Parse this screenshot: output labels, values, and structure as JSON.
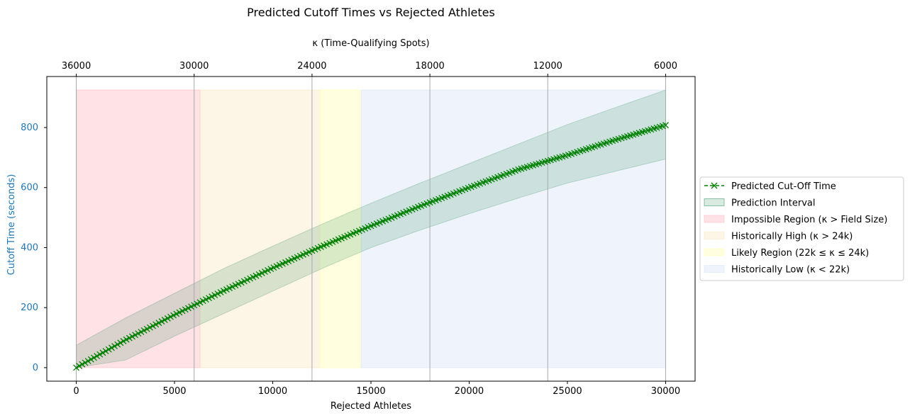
{
  "chart_data": {
    "type": "line",
    "title": "Predicted Cutoff Times vs Rejected Athletes",
    "xlabel": "Rejected Athletes",
    "ylabel": "Cutoff Time (seconds)",
    "top_xlabel": "κ (Time-Qualifying Spots)",
    "xlim": [
      -1500,
      31500
    ],
    "ylim": [
      -45,
      970
    ],
    "x_ticks": [
      0,
      5000,
      10000,
      15000,
      20000,
      25000,
      30000
    ],
    "x_tick_labels": [
      "0",
      "5000",
      "10000",
      "15000",
      "20000",
      "25000",
      "30000"
    ],
    "y_ticks": [
      0,
      200,
      400,
      600,
      800
    ],
    "y_tick_labels": [
      "0",
      "200",
      "400",
      "600",
      "800"
    ],
    "top_ticks": [
      0,
      6000,
      12000,
      18000,
      24000,
      30000
    ],
    "top_tick_labels": [
      "36000",
      "30000",
      "24000",
      "18000",
      "12000",
      "6000"
    ],
    "field_size": 36000,
    "grid": "vertical at top-axis ticks",
    "legend_position": "right",
    "series": [
      {
        "name": "Predicted Cut-Off Time",
        "color": "#008000",
        "marker": "x",
        "line_style": "dashed",
        "x": [
          0,
          2500,
          5000,
          7500,
          10000,
          12500,
          15000,
          17500,
          20000,
          22500,
          25000,
          27500,
          30000
        ],
        "values": [
          0,
          92,
          176,
          256,
          332,
          404,
          472,
          538,
          600,
          660,
          708,
          760,
          808
        ]
      }
    ],
    "prediction_interval": {
      "name": "Prediction Interval",
      "color": "#2e8b57",
      "x": [
        0,
        2500,
        5000,
        7500,
        10000,
        12500,
        15000,
        17500,
        20000,
        22500,
        25000,
        27500,
        30000
      ],
      "lower": [
        0,
        25,
        105,
        180,
        255,
        330,
        400,
        458,
        513,
        565,
        615,
        655,
        695
      ],
      "upper": [
        75,
        165,
        248,
        330,
        405,
        478,
        548,
        615,
        680,
        745,
        810,
        868,
        925
      ]
    },
    "regions": [
      {
        "name": "Impossible Region (κ > Field Size)",
        "x_start": 0,
        "x_end": 6300,
        "y_top": 925,
        "color": "#ffb6c1"
      },
      {
        "name": "Historically High (κ > 24k)",
        "x_start": 6300,
        "x_end": 12400,
        "y_top": 925,
        "color": "#fbe5c0"
      },
      {
        "name": "Likely Region (22k ≤ κ ≤ 24k)",
        "x_start": 12400,
        "x_end": 14500,
        "y_top": 925,
        "color": "#ffffb0"
      },
      {
        "name": "Historically Low (κ < 22k)",
        "x_start": 14500,
        "x_end": 30000,
        "y_top": 925,
        "color": "#d6e3f8"
      }
    ],
    "colors": {
      "ylabel": "#1f77b4",
      "ytick": "#1f77b4",
      "grid": "#a9a9a9"
    }
  }
}
